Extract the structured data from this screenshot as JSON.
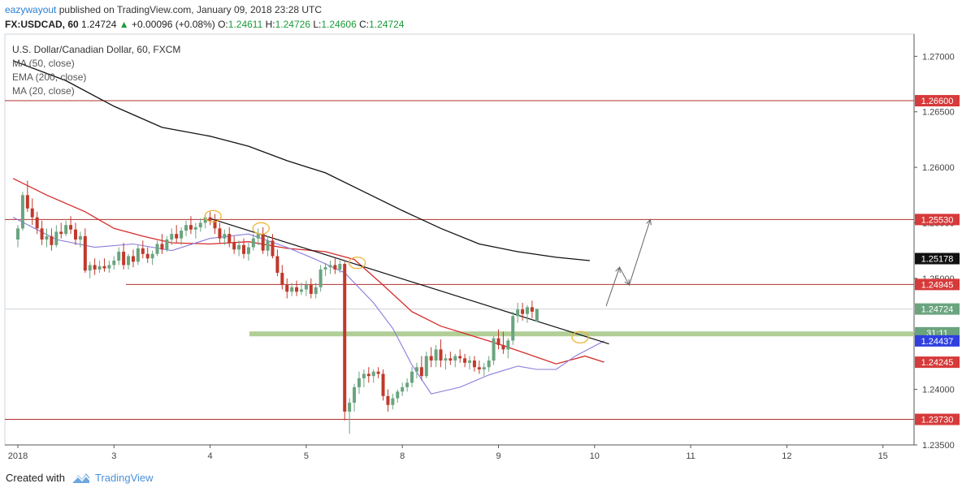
{
  "header": {
    "author": "eazywayout",
    "published_text": "published on TradingView.com, January 09, 2018 23:28 UTC",
    "symbol": "FX:USDCAD, 60",
    "last": "1.24724",
    "change": "+0.00096 (+0.08%)",
    "o_label": "O:",
    "o_value": "1.24611",
    "h_label": "H:",
    "h_value": "1.24726",
    "l_label": "L:",
    "l_value": "1.24606",
    "c_label": "C:",
    "c_value": "1.24724"
  },
  "legend": {
    "title": "U.S. Dollar/Canadian Dollar, 60, FXCM",
    "items": [
      "MA (50, close)",
      "EMA (200, close)",
      "MA (20, close)"
    ]
  },
  "footer": {
    "created_with": "Created with",
    "brand": "TradingView"
  },
  "colors": {
    "up": "#6aa47f",
    "down": "#c0392b",
    "ema200": "#111111",
    "ma50": "#8a7bdc",
    "ma20": "#d62b2b",
    "hline": "#b03030",
    "support_band": "#a9c98b",
    "price_up_label": "#6aa47f",
    "blue_label": "#2f3fe0",
    "red_label": "#d63a3a"
  },
  "chart_data": {
    "type": "candlestick",
    "ylim": [
      1.235,
      1.272
    ],
    "x_ticks": [
      {
        "label": "2018",
        "x": 0.0
      },
      {
        "label": "3",
        "x": 1.0
      },
      {
        "label": "4",
        "x": 2.0
      },
      {
        "label": "5",
        "x": 3.0
      },
      {
        "label": "8",
        "x": 4.0
      },
      {
        "label": "9",
        "x": 5.0
      },
      {
        "label": "10",
        "x": 6.0
      },
      {
        "label": "11",
        "x": 7.0
      },
      {
        "label": "12",
        "x": 8.0
      },
      {
        "label": "15",
        "x": 9.0
      }
    ],
    "y_ticks": [
      "1.27000",
      "1.26500",
      "1.26000",
      "1.25500",
      "1.25000",
      "1.24500",
      "1.24000",
      "1.23500"
    ],
    "horizontal_levels": [
      {
        "value": 1.266,
        "label": "1.26600",
        "box_color": "#d63a3a"
      },
      {
        "value": 1.2553,
        "label": "1.25530",
        "box_color": "#d63a3a"
      },
      {
        "value": 1.24945,
        "label": "1.24945",
        "box_color": "#d63a3a"
      },
      {
        "value": 1.2373,
        "label": "1.23730",
        "box_color": "#d63a3a"
      }
    ],
    "indicator_labels": [
      {
        "value": 1.25178,
        "label": "1.25178",
        "box_color": "#111111"
      },
      {
        "value": 1.24724,
        "label": "1.24724",
        "box_color": "#6aa47f"
      },
      {
        "value": 1.2451,
        "label": "31:11",
        "box_color": "#6aa47f"
      },
      {
        "value": 1.24437,
        "label": "1.24437",
        "box_color": "#2f3fe0"
      },
      {
        "value": 1.24245,
        "label": "1.24245",
        "box_color": "#d63a3a"
      }
    ],
    "support_band": 1.245,
    "trendline": {
      "from": [
        2.0,
        1.2554
      ],
      "to": [
        6.15,
        1.2441
      ]
    },
    "ema200": [
      [
        -0.05,
        1.2696
      ],
      [
        0.5,
        1.2678
      ],
      [
        1.0,
        1.2655
      ],
      [
        1.5,
        1.2636
      ],
      [
        2.0,
        1.2628
      ],
      [
        2.4,
        1.2619
      ],
      [
        2.8,
        1.2606
      ],
      [
        3.2,
        1.2595
      ],
      [
        3.6,
        1.2578
      ],
      [
        4.0,
        1.2561
      ],
      [
        4.4,
        1.2545
      ],
      [
        4.8,
        1.2531
      ],
      [
        5.2,
        1.2524
      ],
      [
        5.6,
        1.2519
      ],
      [
        5.95,
        1.2516
      ]
    ],
    "ma20": [
      [
        -0.05,
        1.259
      ],
      [
        0.3,
        1.2575
      ],
      [
        0.7,
        1.256
      ],
      [
        1.0,
        1.2545
      ],
      [
        1.3,
        1.2538
      ],
      [
        1.6,
        1.2532
      ],
      [
        2.0,
        1.2531
      ],
      [
        2.4,
        1.2533
      ],
      [
        2.8,
        1.2527
      ],
      [
        3.2,
        1.2524
      ],
      [
        3.5,
        1.2517
      ],
      [
        3.8,
        1.2494
      ],
      [
        4.1,
        1.247
      ],
      [
        4.4,
        1.2457
      ],
      [
        4.7,
        1.2449
      ],
      [
        5.0,
        1.2441
      ],
      [
        5.3,
        1.2432
      ],
      [
        5.6,
        1.2423
      ],
      [
        5.9,
        1.243
      ],
      [
        6.1,
        1.24245
      ]
    ],
    "ma50": [
      [
        -0.05,
        1.2555
      ],
      [
        0.4,
        1.2535
      ],
      [
        0.8,
        1.2528
      ],
      [
        1.2,
        1.2531
      ],
      [
        1.6,
        1.2525
      ],
      [
        2.0,
        1.2536
      ],
      [
        2.4,
        1.254
      ],
      [
        2.8,
        1.2528
      ],
      [
        3.1,
        1.2517
      ],
      [
        3.4,
        1.2505
      ],
      [
        3.7,
        1.2478
      ],
      [
        3.9,
        1.2455
      ],
      [
        4.1,
        1.2422
      ],
      [
        4.3,
        1.2396
      ],
      [
        4.6,
        1.2402
      ],
      [
        4.9,
        1.2413
      ],
      [
        5.2,
        1.2421
      ],
      [
        5.4,
        1.2418
      ],
      [
        5.6,
        1.2418
      ],
      [
        5.8,
        1.243
      ],
      [
        6.1,
        1.24437
      ]
    ],
    "projection": [
      [
        6.12,
        1.2475
      ],
      [
        6.26,
        1.251
      ],
      [
        6.36,
        1.2494
      ],
      [
        6.58,
        1.2553
      ]
    ],
    "highlight_circles": [
      [
        2.03,
        1.2556
      ],
      [
        2.53,
        1.2545
      ],
      [
        3.53,
        1.2514
      ],
      [
        5.85,
        1.2447
      ]
    ],
    "candles": [
      [
        0.0,
        1.2535,
        1.2548,
        1.2528,
        1.2545
      ],
      [
        0.05,
        1.2545,
        1.2578,
        1.2543,
        1.2575
      ],
      [
        0.1,
        1.2575,
        1.2588,
        1.256,
        1.2563
      ],
      [
        0.15,
        1.2563,
        1.2572,
        1.2548,
        1.2555
      ],
      [
        0.2,
        1.2555,
        1.256,
        1.254,
        1.2545
      ],
      [
        0.25,
        1.2545,
        1.2552,
        1.253,
        1.2535
      ],
      [
        0.3,
        1.2535,
        1.2545,
        1.2528,
        1.2538
      ],
      [
        0.35,
        1.2538,
        1.2545,
        1.2525,
        1.253
      ],
      [
        0.4,
        1.253,
        1.2548,
        1.2528,
        1.2542
      ],
      [
        0.45,
        1.2542,
        1.255,
        1.2536,
        1.254
      ],
      [
        0.5,
        1.254,
        1.2552,
        1.2538,
        1.2548
      ],
      [
        0.55,
        1.2548,
        1.2556,
        1.254,
        1.2544
      ],
      [
        0.6,
        1.2544,
        1.255,
        1.253,
        1.2535
      ],
      [
        0.65,
        1.2535,
        1.2542,
        1.2528,
        1.2538
      ],
      [
        0.7,
        1.2538,
        1.2545,
        1.2505,
        1.2507
      ],
      [
        0.75,
        1.2507,
        1.2515,
        1.25,
        1.2512
      ],
      [
        0.8,
        1.2512,
        1.2518,
        1.2503,
        1.2508
      ],
      [
        0.85,
        1.2508,
        1.2516,
        1.2505,
        1.2511
      ],
      [
        0.9,
        1.2511,
        1.2518,
        1.2506,
        1.2509
      ],
      [
        0.95,
        1.2509,
        1.2516,
        1.2505,
        1.2512
      ],
      [
        1.0,
        1.2512,
        1.252,
        1.2508,
        1.2516
      ],
      [
        1.05,
        1.2516,
        1.2528,
        1.2512,
        1.2524
      ],
      [
        1.1,
        1.2524,
        1.2532,
        1.2508,
        1.2512
      ],
      [
        1.15,
        1.2512,
        1.2522,
        1.2508,
        1.252
      ],
      [
        1.2,
        1.252,
        1.2526,
        1.251,
        1.2515
      ],
      [
        1.25,
        1.2515,
        1.253,
        1.2512,
        1.2527
      ],
      [
        1.3,
        1.2527,
        1.2534,
        1.2518,
        1.2522
      ],
      [
        1.35,
        1.2522,
        1.2528,
        1.2514,
        1.2518
      ],
      [
        1.4,
        1.2518,
        1.2525,
        1.2512,
        1.2522
      ],
      [
        1.45,
        1.2522,
        1.2534,
        1.252,
        1.2531
      ],
      [
        1.5,
        1.2531,
        1.254,
        1.2522,
        1.2526
      ],
      [
        1.55,
        1.2526,
        1.2538,
        1.2524,
        1.2535
      ],
      [
        1.6,
        1.2535,
        1.2545,
        1.253,
        1.254
      ],
      [
        1.65,
        1.254,
        1.2548,
        1.2532,
        1.2536
      ],
      [
        1.7,
        1.2536,
        1.2546,
        1.253,
        1.2543
      ],
      [
        1.75,
        1.2543,
        1.2552,
        1.2538,
        1.2548
      ],
      [
        1.8,
        1.2548,
        1.2556,
        1.254,
        1.2544
      ],
      [
        1.85,
        1.2544,
        1.255,
        1.2536,
        1.2546
      ],
      [
        1.9,
        1.2546,
        1.2554,
        1.2542,
        1.255
      ],
      [
        1.95,
        1.255,
        1.2558,
        1.2545,
        1.2555
      ],
      [
        2.0,
        1.2555,
        1.256,
        1.2548,
        1.2552
      ],
      [
        2.05,
        1.2552,
        1.2558,
        1.254,
        1.2545
      ],
      [
        2.1,
        1.2545,
        1.255,
        1.2532,
        1.2536
      ],
      [
        2.15,
        1.2536,
        1.2544,
        1.253,
        1.254
      ],
      [
        2.2,
        1.254,
        1.2546,
        1.2528,
        1.2532
      ],
      [
        2.25,
        1.2532,
        1.2538,
        1.2522,
        1.2526
      ],
      [
        2.3,
        1.2526,
        1.2534,
        1.252,
        1.253
      ],
      [
        2.35,
        1.253,
        1.2536,
        1.2518,
        1.2522
      ],
      [
        2.4,
        1.2522,
        1.2532,
        1.2516,
        1.2528
      ],
      [
        2.45,
        1.2528,
        1.254,
        1.2525,
        1.2536
      ],
      [
        2.5,
        1.2536,
        1.2545,
        1.253,
        1.254
      ],
      [
        2.55,
        1.254,
        1.2546,
        1.2522,
        1.2525
      ],
      [
        2.6,
        1.2525,
        1.2538,
        1.252,
        1.2534
      ],
      [
        2.65,
        1.2534,
        1.254,
        1.2518,
        1.252
      ],
      [
        2.7,
        1.252,
        1.2526,
        1.2502,
        1.2505
      ],
      [
        2.75,
        1.2505,
        1.2512,
        1.249,
        1.2494
      ],
      [
        2.8,
        1.2494,
        1.25,
        1.2482,
        1.2488
      ],
      [
        2.85,
        1.2488,
        1.2496,
        1.2484,
        1.2492
      ],
      [
        2.9,
        1.2492,
        1.2498,
        1.2484,
        1.2488
      ],
      [
        2.95,
        1.2488,
        1.2496,
        1.2485,
        1.249
      ],
      [
        3.0,
        1.249,
        1.2498,
        1.2484,
        1.2494
      ],
      [
        3.05,
        1.2494,
        1.25,
        1.2482,
        1.2486
      ],
      [
        3.1,
        1.2486,
        1.2496,
        1.2482,
        1.2492
      ],
      [
        3.15,
        1.2492,
        1.2512,
        1.2488,
        1.2508
      ],
      [
        3.2,
        1.2508,
        1.2514,
        1.2502,
        1.251
      ],
      [
        3.25,
        1.251,
        1.2516,
        1.2504,
        1.2512
      ],
      [
        3.3,
        1.2512,
        1.2518,
        1.2504,
        1.2508
      ],
      [
        3.35,
        1.2508,
        1.2516,
        1.2505,
        1.2513
      ],
      [
        3.4,
        1.2513,
        1.2515,
        1.2372,
        1.238
      ],
      [
        3.45,
        1.238,
        1.2392,
        1.236,
        1.2388
      ],
      [
        3.5,
        1.2388,
        1.2405,
        1.238,
        1.2402
      ],
      [
        3.55,
        1.2402,
        1.2416,
        1.2396,
        1.241
      ],
      [
        3.6,
        1.241,
        1.2418,
        1.2402,
        1.2414
      ],
      [
        3.65,
        1.2414,
        1.242,
        1.2406,
        1.2412
      ],
      [
        3.7,
        1.2412,
        1.2418,
        1.2406,
        1.2416
      ],
      [
        3.75,
        1.2416,
        1.242,
        1.241,
        1.2414
      ],
      [
        3.8,
        1.2414,
        1.2418,
        1.239,
        1.2394
      ],
      [
        3.85,
        1.2394,
        1.24,
        1.238,
        1.2386
      ],
      [
        3.9,
        1.2386,
        1.2396,
        1.2382,
        1.2392
      ],
      [
        3.95,
        1.2392,
        1.24,
        1.2388,
        1.2398
      ],
      [
        4.0,
        1.2398,
        1.2406,
        1.2394,
        1.2402
      ],
      [
        4.05,
        1.2402,
        1.241,
        1.2398,
        1.2406
      ],
      [
        4.1,
        1.2406,
        1.242,
        1.2402,
        1.2416
      ],
      [
        4.15,
        1.2416,
        1.2424,
        1.241,
        1.242
      ],
      [
        4.2,
        1.242,
        1.243,
        1.2408,
        1.2412
      ],
      [
        4.25,
        1.2412,
        1.2434,
        1.241,
        1.243
      ],
      [
        4.3,
        1.243,
        1.2438,
        1.242,
        1.2426
      ],
      [
        4.35,
        1.2426,
        1.244,
        1.242,
        1.2436
      ],
      [
        4.4,
        1.2436,
        1.2445,
        1.242,
        1.2426
      ],
      [
        4.45,
        1.2426,
        1.2432,
        1.2418,
        1.2428
      ],
      [
        4.5,
        1.2428,
        1.2434,
        1.2422,
        1.2426
      ],
      [
        4.55,
        1.2426,
        1.2432,
        1.242,
        1.243
      ],
      [
        4.6,
        1.243,
        1.2436,
        1.2424,
        1.2428
      ],
      [
        4.65,
        1.2428,
        1.2432,
        1.242,
        1.2424
      ],
      [
        4.7,
        1.2424,
        1.243,
        1.2418,
        1.2426
      ],
      [
        4.75,
        1.2426,
        1.243,
        1.2416,
        1.242
      ],
      [
        4.8,
        1.242,
        1.2426,
        1.2414,
        1.2418
      ],
      [
        4.85,
        1.2418,
        1.2424,
        1.2412,
        1.242
      ],
      [
        4.9,
        1.242,
        1.243,
        1.2416,
        1.2426
      ],
      [
        4.95,
        1.2426,
        1.2448,
        1.2422,
        1.2446
      ],
      [
        5.0,
        1.2446,
        1.2454,
        1.2436,
        1.244
      ],
      [
        5.05,
        1.244,
        1.2452,
        1.2432,
        1.2436
      ],
      [
        5.1,
        1.2436,
        1.2446,
        1.2428,
        1.2444
      ],
      [
        5.15,
        1.2444,
        1.247,
        1.244,
        1.2466
      ],
      [
        5.2,
        1.2466,
        1.2478,
        1.246,
        1.2472
      ],
      [
        5.25,
        1.2472,
        1.2478,
        1.2462,
        1.2468
      ],
      [
        5.3,
        1.2468,
        1.2476,
        1.246,
        1.2474
      ],
      [
        5.35,
        1.2474,
        1.248,
        1.2464,
        1.247
      ],
      [
        5.4,
        1.24611,
        1.24726,
        1.24606,
        1.24724
      ]
    ]
  }
}
